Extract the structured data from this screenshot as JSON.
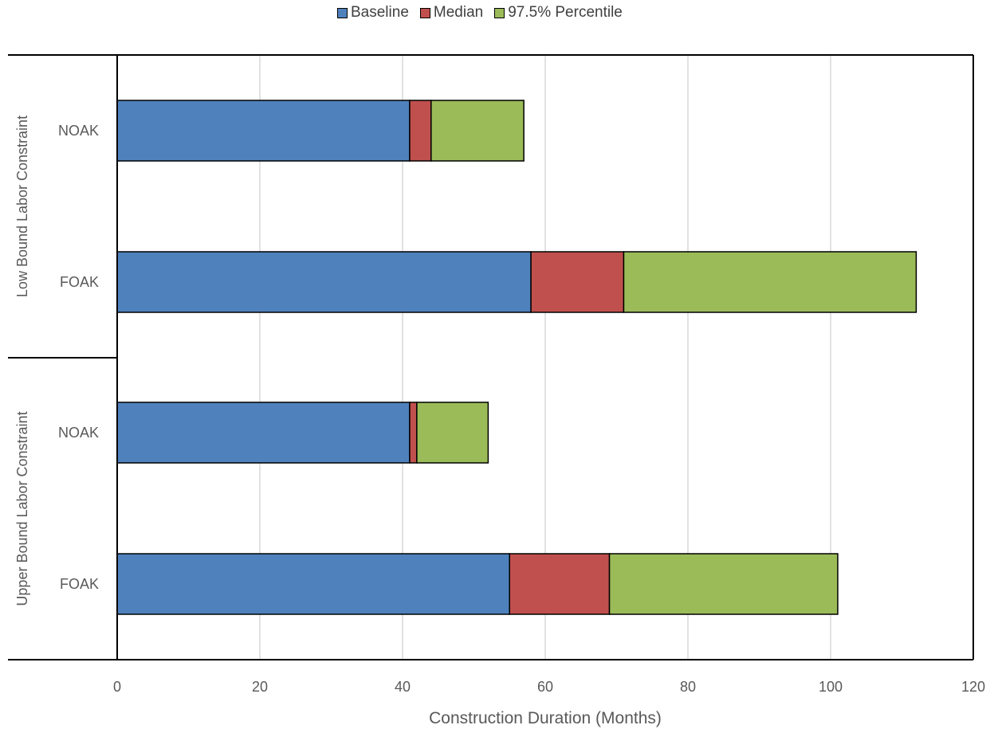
{
  "chart_data": {
    "type": "bar",
    "orientation": "horizontal",
    "stacked": true,
    "groups": [
      {
        "label": "Low Bound Labor Constraint",
        "categories": [
          "NOAK",
          "FOAK"
        ]
      },
      {
        "label": "Upper Bound Labor Constraint",
        "categories": [
          "NOAK",
          "FOAK"
        ]
      }
    ],
    "categories": [
      "NOAK",
      "FOAK",
      "NOAK",
      "FOAK"
    ],
    "series": [
      {
        "name": "Baseline",
        "color": "#4f81bd",
        "values": [
          41,
          58,
          41,
          55
        ]
      },
      {
        "name": "Median",
        "color": "#c0504d",
        "values": [
          3,
          13,
          1,
          14
        ]
      },
      {
        "name": "97.5% Percentile",
        "color": "#9bbb59",
        "values": [
          13,
          41,
          10,
          32
        ]
      }
    ],
    "title": "",
    "xlabel": "Construction Duration (Months)",
    "ylabel": "",
    "xlim": [
      0,
      120
    ],
    "xticks": [
      "0",
      "20",
      "40",
      "60",
      "80",
      "100",
      "120"
    ],
    "grid": "vertical",
    "legend_position": "top-center"
  }
}
